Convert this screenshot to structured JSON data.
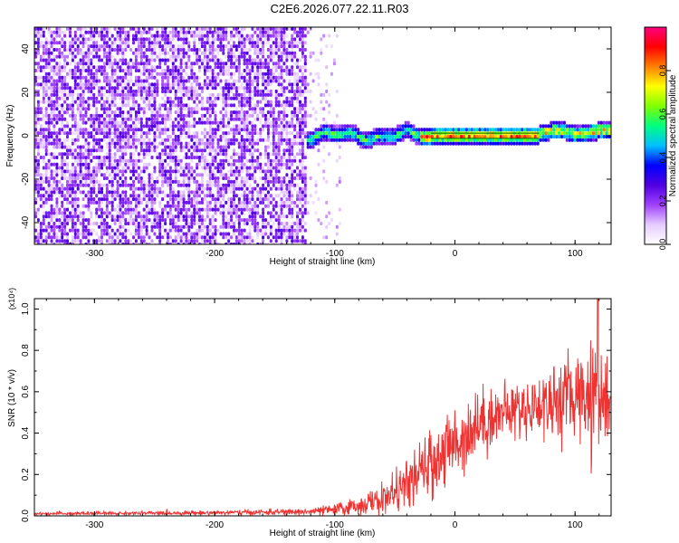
{
  "figure_title": "C2E6.2026.077.22.11.R03",
  "chart_data": [
    {
      "type": "heatmap",
      "title": "",
      "xlabel": "Height of straight line (km)",
      "ylabel": "Frequency (Hz)",
      "xlim": [
        -350,
        130
      ],
      "ylim": [
        -50,
        50
      ],
      "xticks": [
        -300,
        -200,
        -100,
        0,
        100
      ],
      "yticks": [
        -40,
        -20,
        0,
        20,
        40
      ],
      "colorbar": {
        "label": "Normalized spectral amplitude",
        "range": [
          0.0,
          1.0
        ],
        "ticks": [
          0.0,
          0.2,
          0.4,
          0.6,
          0.8
        ],
        "colors": [
          "#ffffff",
          "#e6ccff",
          "#a040ff",
          "#5000e0",
          "#0000ff",
          "#00c0ff",
          "#00ff80",
          "#80ff00",
          "#ffff00",
          "#ff8000",
          "#ff0000",
          "#ff0080"
        ]
      },
      "regions": [
        {
          "name": "noise",
          "x_range": [
            -350,
            -125
          ],
          "freq_range": [
            -50,
            50
          ],
          "amplitude_range": [
            0.05,
            0.25
          ]
        },
        {
          "name": "sparse noise",
          "x_range": [
            -125,
            -95
          ],
          "freq_range": [
            -50,
            50
          ],
          "amplitude_range": [
            0.05,
            0.15
          ]
        },
        {
          "name": "signal band",
          "x_range": [
            -125,
            130
          ],
          "freq_center": 0,
          "freq_halfwidth": 4,
          "amplitude_range": [
            0.2,
            1.0
          ]
        }
      ]
    },
    {
      "type": "line",
      "title": "",
      "xlabel": "Height of straight line (km)",
      "ylabel": "SNR (10 * v/v)",
      "y_multiplier": "(x10⁴)",
      "xlim": [
        -350,
        130
      ],
      "ylim": [
        0,
        1.05
      ],
      "xticks": [
        -300,
        -200,
        -100,
        0,
        100
      ],
      "yticks": [
        0.0,
        0.2,
        0.4,
        0.6,
        0.8,
        1.0
      ],
      "line_color": "#ee3333",
      "series": [
        {
          "name": "SNR",
          "x": [
            -350,
            -300,
            -250,
            -200,
            -150,
            -120,
            -100,
            -80,
            -60,
            -40,
            -20,
            0,
            20,
            40,
            60,
            80,
            100,
            110,
            118,
            125,
            130
          ],
          "y": [
            0.01,
            0.012,
            0.013,
            0.015,
            0.018,
            0.02,
            0.03,
            0.05,
            0.08,
            0.15,
            0.25,
            0.35,
            0.45,
            0.5,
            0.52,
            0.55,
            0.58,
            0.6,
            0.65,
            0.55,
            0.55
          ],
          "spread": [
            0.008,
            0.01,
            0.01,
            0.012,
            0.015,
            0.02,
            0.03,
            0.05,
            0.08,
            0.12,
            0.18,
            0.2,
            0.18,
            0.15,
            0.15,
            0.2,
            0.22,
            0.25,
            0.3,
            0.25,
            0.2
          ],
          "peak": {
            "x": 119,
            "y": 1.05
          }
        }
      ]
    }
  ]
}
